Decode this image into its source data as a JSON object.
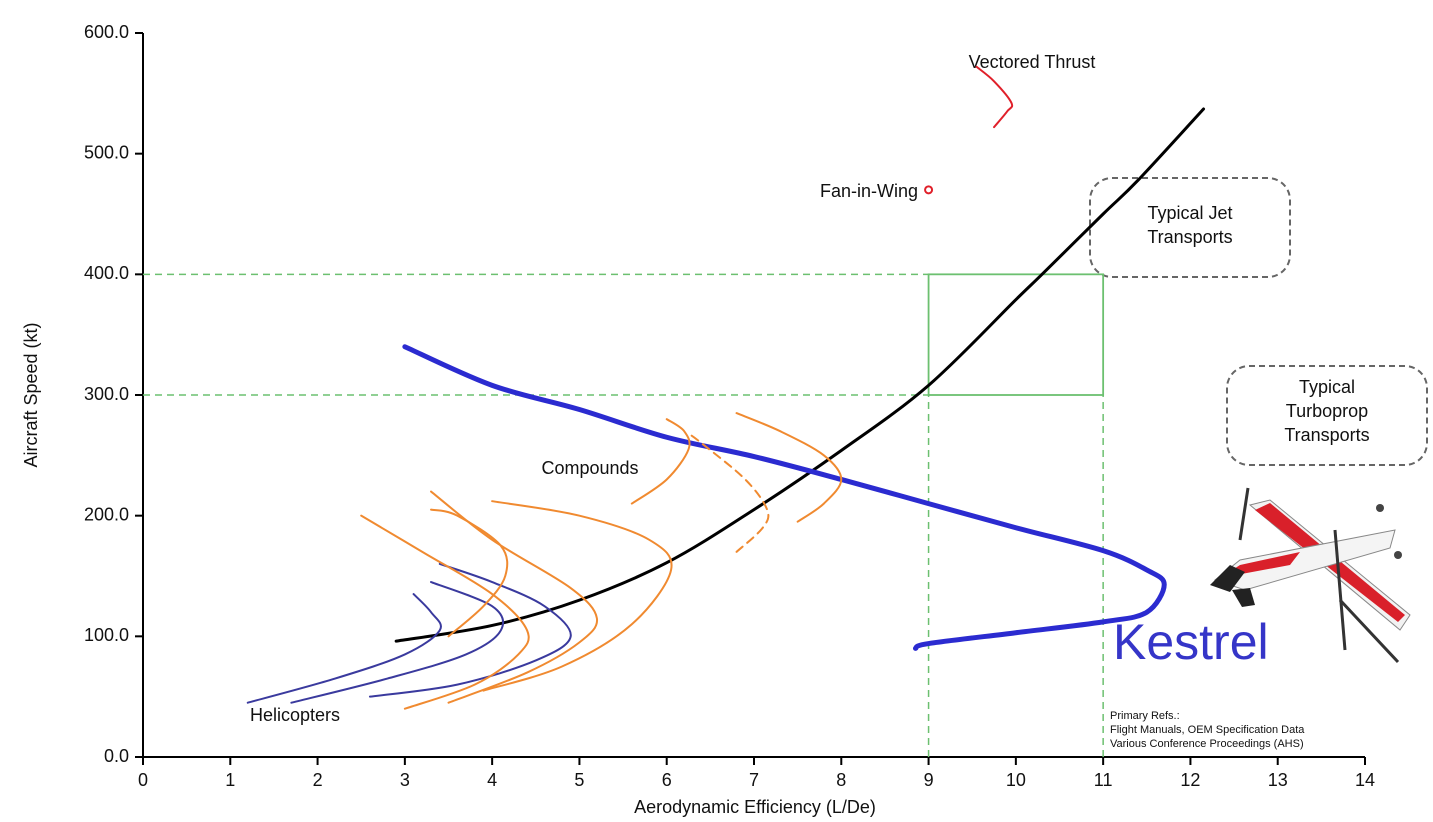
{
  "chart_data": {
    "type": "line",
    "xlabel": "Aerodynamic Efficiency (L/De)",
    "ylabel": "Aircraft Speed (kt)",
    "xlim": [
      0,
      14
    ],
    "ylim": [
      0,
      600
    ],
    "xticks": [
      0,
      1,
      2,
      3,
      4,
      5,
      6,
      7,
      8,
      9,
      10,
      11,
      12,
      13,
      14
    ],
    "yticks": [
      {
        "value": 0,
        "label": "0.0"
      },
      {
        "value": 100,
        "label": "100.0"
      },
      {
        "value": 200,
        "label": "200.0"
      },
      {
        "value": 300,
        "label": "300.0"
      },
      {
        "value": 400,
        "label": "400.0"
      },
      {
        "value": 500,
        "label": "500.0"
      },
      {
        "value": 600,
        "label": "600.0"
      }
    ],
    "series": [
      {
        "color": "#000000",
        "x": [
          2.9,
          4,
          5,
          6,
          7,
          8,
          9,
          10,
          10.3,
          11,
          11.4,
          12.15
        ],
        "values": [
          96,
          109,
          130,
          161,
          205,
          254,
          308,
          379,
          400,
          450,
          478,
          537
        ]
      },
      {
        "color": "#2b2bd0",
        "x": [
          3.0,
          4,
          5,
          6,
          7,
          8,
          9,
          10,
          11,
          11.5,
          11.7,
          11.5,
          11,
          10,
          9,
          8.85
        ],
        "values": [
          340,
          308,
          288,
          265,
          249,
          230,
          210,
          190,
          171,
          155,
          143,
          120,
          112,
          103,
          94,
          90
        ]
      },
      {
        "color": "#3a3a9e",
        "x": [
          1.2,
          2.2,
          3.0,
          3.4,
          3.3,
          3.1
        ],
        "values": [
          45,
          65,
          85,
          105,
          120,
          135
        ]
      },
      {
        "color": "#3a3a9e",
        "x": [
          1.7,
          2.8,
          3.7,
          4.1,
          4.0,
          3.3
        ],
        "values": [
          45,
          65,
          85,
          105,
          125,
          145
        ]
      },
      {
        "color": "#3a3a9e",
        "x": [
          2.6,
          3.6,
          4.5,
          4.9,
          4.6,
          4.0,
          3.4
        ],
        "values": [
          50,
          60,
          80,
          100,
          125,
          145,
          160
        ]
      },
      {
        "color": "#f08a30",
        "x": [
          3.0,
          3.8,
          4.3,
          4.4,
          4.0,
          3.2,
          2.5
        ],
        "values": [
          40,
          60,
          85,
          105,
          135,
          170,
          200
        ]
      },
      {
        "color": "#f08a30",
        "x": [
          3.5,
          4.4,
          5.0,
          5.2,
          4.9,
          4.0,
          3.3
        ],
        "values": [
          45,
          70,
          95,
          115,
          140,
          180,
          220
        ]
      },
      {
        "color": "#f08a30",
        "x": [
          3.9,
          4.8,
          5.6,
          6.05,
          5.8,
          5.0,
          4.0
        ],
        "values": [
          55,
          75,
          110,
          155,
          180,
          200,
          212
        ]
      },
      {
        "color": "#f08a30",
        "x": [
          3.5,
          3.9,
          4.15,
          4.1,
          3.6,
          3.3
        ],
        "values": [
          100,
          125,
          150,
          175,
          200,
          205
        ]
      },
      {
        "color": "#f08a30",
        "x": [
          5.6,
          6.0,
          6.25,
          6.2,
          6.0
        ],
        "values": [
          210,
          230,
          255,
          270,
          280
        ]
      },
      {
        "color": "#f08a30",
        "dashed": true,
        "x": [
          6.8,
          7.1,
          7.15,
          6.9,
          6.4,
          6.25
        ],
        "values": [
          170,
          190,
          205,
          230,
          260,
          268
        ]
      },
      {
        "color": "#f08a30",
        "x": [
          7.5,
          7.8,
          8.0,
          7.8,
          7.3,
          6.8
        ],
        "values": [
          195,
          210,
          230,
          250,
          270,
          285
        ]
      },
      {
        "color": "#e0202a",
        "x": [
          9.75,
          9.9,
          9.95,
          9.75,
          9.55
        ],
        "values": [
          522,
          535,
          542,
          560,
          572
        ]
      }
    ],
    "points": [
      {
        "x": 9.0,
        "y": 470,
        "color": "#e0202a"
      }
    ],
    "region": {
      "x": [
        9,
        11
      ],
      "y": [
        300,
        400
      ],
      "color": "#6cc070"
    },
    "annotations": {
      "vectored_thrust": "Vectored Thrust",
      "fan_in_wing": "Fan-in-Wing",
      "jet": [
        "Typical Jet",
        "Transports"
      ],
      "turboprop": [
        "Typical",
        "Turboprop",
        "Transports"
      ],
      "compounds": "Compounds",
      "helicopters": "Helicopters",
      "kestrel": "Kestrel",
      "refs": [
        "Primary Refs.:",
        "Flight Manuals, OEM Specification Data",
        "Various Conference Proceedings (AHS)"
      ]
    }
  }
}
